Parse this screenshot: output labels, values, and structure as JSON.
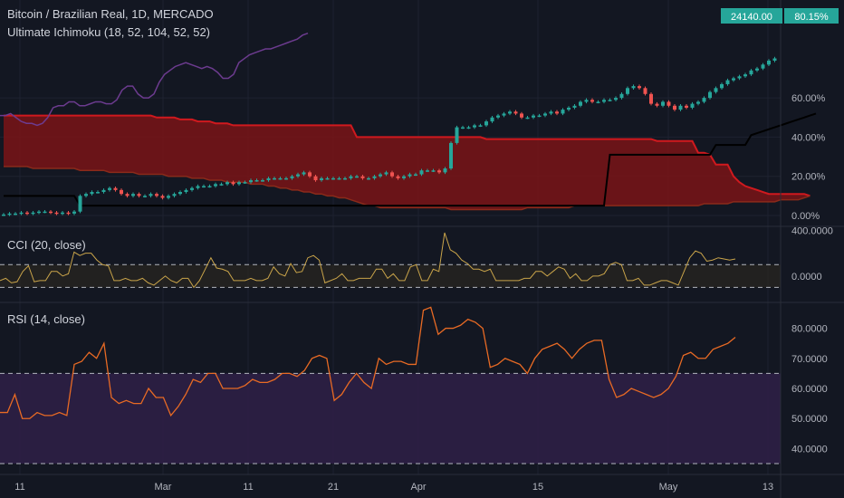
{
  "header": {
    "symbol_line": "Bitcoin / Brazilian Real, 1D, MERCADO",
    "indicator_line": "Ultimate Ichimoku (18, 52, 104, 52, 52)",
    "price_badge": "24140.00",
    "percent_badge": "80.15%"
  },
  "panes": {
    "cci_title": "CCI (20, close)",
    "rsi_title": "RSI (14, close)"
  },
  "colors": {
    "background": "#131722",
    "grid": "#1e2230",
    "cloud_fill": "#7a1416",
    "cloud_line": "#d0191e",
    "baseline": "#000000",
    "lagging": "#6c3b8f",
    "candle_up": "#26a69a",
    "candle_down": "#ef5350",
    "cci_line": "#c9a44a",
    "rsi_line": "#e86a24",
    "rsi_band": "#2d1f45",
    "badge_green": "#26a69a"
  },
  "chart_data": [
    {
      "type": "candlestick",
      "title": "Bitcoin / Brazilian Real, 1D, MERCADO",
      "y_axis_unit": "%",
      "y_ticks": [
        "0.00%",
        "20.00%",
        "40.00%",
        "60.00%"
      ],
      "ylim": [
        0,
        85
      ],
      "x_ticks": [
        "11",
        "Mar",
        "11",
        "21",
        "Apr",
        "15",
        "May",
        "13"
      ],
      "closes_percent": [
        0.5,
        1,
        1,
        1.5,
        1,
        1.5,
        2,
        2,
        1.5,
        1,
        1.5,
        1,
        2,
        10,
        11,
        12,
        12,
        13,
        14,
        13,
        11,
        10,
        11,
        10,
        10,
        11,
        10,
        9,
        10,
        11,
        12,
        13,
        14,
        15,
        15,
        15,
        16,
        16,
        17,
        16,
        17,
        17,
        18,
        18,
        18,
        19,
        19,
        19,
        19,
        20,
        21,
        22,
        20,
        18,
        19,
        19,
        19,
        19,
        19,
        20,
        20,
        19,
        19,
        20,
        21,
        22,
        20,
        19,
        20,
        21,
        21,
        23,
        23,
        23,
        22,
        24,
        37,
        45,
        45,
        45,
        46,
        46,
        48,
        50,
        51,
        52,
        53,
        52,
        50,
        50,
        51,
        51,
        52,
        53,
        52,
        54,
        55,
        56,
        58,
        59,
        58,
        58,
        59,
        59,
        60,
        62,
        65,
        66,
        65,
        62,
        57,
        56,
        58,
        56,
        54,
        56,
        55,
        57,
        58,
        60,
        63,
        65,
        67,
        69,
        70,
        71,
        72,
        74,
        75,
        77,
        79,
        80.15
      ],
      "tenkan_percent": [
        1,
        1,
        1,
        1,
        1,
        1,
        1,
        1,
        1,
        1,
        1,
        1,
        1,
        10,
        10,
        11,
        11,
        12,
        12,
        12,
        12,
        11,
        11,
        11,
        11,
        11,
        11,
        11,
        11,
        11,
        12,
        12,
        13,
        13,
        14,
        14,
        14,
        14,
        15,
        15,
        15,
        16,
        16,
        16,
        16,
        17,
        17,
        17,
        17,
        18,
        18,
        18,
        19,
        19,
        19,
        19,
        19,
        19,
        20,
        20,
        20,
        20,
        20,
        20,
        20,
        20,
        20,
        20,
        20,
        20,
        20,
        20,
        20,
        21,
        21,
        22,
        23,
        23,
        24,
        24,
        24,
        24,
        24,
        25,
        25,
        25,
        25,
        25,
        25,
        25,
        25,
        26,
        26,
        27,
        28,
        29,
        30,
        32,
        33,
        35,
        36,
        37,
        38,
        39,
        40,
        40,
        41,
        42,
        43,
        44,
        45,
        46,
        46,
        47,
        47,
        47,
        48,
        48,
        49,
        49,
        50,
        50,
        51,
        52,
        53,
        55,
        56,
        58,
        60,
        62,
        64,
        66,
        68,
        70,
        72,
        74,
        76,
        78,
        80
      ],
      "kijun_percent": [
        10,
        10,
        10,
        10,
        10,
        10,
        10,
        10,
        10,
        10,
        10,
        10,
        10,
        5,
        5,
        5,
        5,
        5,
        5,
        5,
        5,
        5,
        5,
        5,
        5,
        5,
        5,
        5,
        5,
        5,
        5,
        5,
        5,
        5,
        5,
        5,
        5,
        5,
        5,
        5,
        5,
        5,
        5,
        5,
        5,
        5,
        5,
        5,
        5,
        5,
        5,
        5,
        5,
        5,
        5,
        5,
        5,
        5,
        5,
        5,
        5,
        5,
        5,
        5,
        5,
        5,
        5,
        5,
        5,
        5,
        5,
        5,
        5,
        5,
        5,
        5,
        5,
        5,
        5,
        5,
        5,
        5,
        5,
        5,
        5,
        5,
        5,
        5,
        5,
        5,
        5,
        5,
        5,
        5,
        5,
        5,
        5,
        5,
        5,
        5,
        5,
        5,
        5,
        31,
        31,
        31,
        31,
        31,
        31,
        31,
        31,
        31,
        31,
        31,
        31,
        31,
        31,
        31,
        31,
        31,
        31,
        36,
        36,
        36,
        36,
        36,
        36,
        41,
        42,
        43,
        44,
        45,
        46,
        47,
        48,
        49,
        50,
        51,
        52
      ],
      "cloud_upper_percent": [
        51,
        51,
        51,
        51,
        51,
        51,
        51,
        51,
        51,
        51,
        51,
        51,
        51,
        51,
        51,
        51,
        51,
        51,
        51,
        51,
        51,
        51,
        51,
        51,
        51,
        51,
        50,
        50,
        50,
        50,
        49,
        49,
        49,
        48,
        48,
        48,
        47,
        47,
        47,
        46,
        46,
        46,
        46,
        46,
        46,
        46,
        46,
        46,
        46,
        46,
        46,
        46,
        46,
        46,
        46,
        46,
        46,
        46,
        46,
        46,
        40,
        40,
        40,
        40,
        40,
        40,
        40,
        40,
        40,
        40,
        40,
        40,
        40,
        40,
        40,
        40,
        40,
        40,
        40,
        40,
        40,
        40,
        39,
        39,
        39,
        39,
        39,
        39,
        39,
        39,
        39,
        39,
        39,
        39,
        39,
        39,
        39,
        39,
        39,
        39,
        39,
        39,
        39,
        39,
        39,
        39,
        39,
        39,
        39,
        39,
        39,
        38,
        38,
        38,
        38,
        38,
        38,
        38,
        32,
        32,
        31,
        26,
        26,
        26,
        20,
        17,
        15,
        14,
        13,
        12,
        11,
        11,
        11,
        11,
        11,
        11,
        11,
        10
      ],
      "cloud_lower_percent": [
        25,
        25,
        25,
        25,
        25,
        24,
        24,
        24,
        24,
        24,
        24,
        24,
        24,
        23,
        23,
        23,
        23,
        23,
        22,
        22,
        22,
        22,
        22,
        21,
        21,
        21,
        21,
        21,
        20,
        20,
        20,
        20,
        19,
        19,
        19,
        18,
        18,
        18,
        17,
        17,
        17,
        17,
        16,
        16,
        16,
        15,
        15,
        14,
        14,
        13,
        13,
        12,
        12,
        11,
        11,
        10,
        10,
        9,
        9,
        8,
        7,
        6,
        5,
        5,
        4,
        4,
        4,
        4,
        4,
        4,
        4,
        4,
        4,
        4,
        4,
        4,
        3,
        3,
        3,
        3,
        3,
        3,
        3,
        3,
        3,
        3,
        3,
        3,
        3,
        4,
        4,
        4,
        4,
        4,
        4,
        4,
        4,
        5,
        5,
        5,
        5,
        5,
        5,
        5,
        5,
        5,
        5,
        5,
        5,
        5,
        5,
        5,
        5,
        5,
        5,
        5,
        5,
        5,
        5,
        6,
        6,
        6,
        6,
        6,
        7,
        7,
        7,
        7,
        7,
        7,
        7,
        7,
        8,
        8,
        8,
        8,
        9,
        10
      ],
      "lagging_percent": [
        51,
        51,
        52,
        50,
        48,
        47,
        47,
        46,
        47,
        50,
        55,
        56,
        56,
        58,
        58,
        56,
        56,
        57,
        58,
        58,
        57,
        57,
        59,
        64,
        66,
        66,
        62,
        60,
        60,
        62,
        68,
        72,
        74,
        76,
        77,
        78,
        77,
        76,
        75,
        76,
        75,
        73,
        70,
        70,
        72,
        78,
        80,
        82,
        83,
        84,
        85,
        85,
        86,
        87,
        88,
        89,
        90,
        92,
        93
      ]
    },
    {
      "type": "line",
      "title": "CCI (20, close)",
      "y_ticks": [
        "400.0000",
        "0.0000"
      ],
      "ylim": [
        -200,
        420
      ],
      "levels": [
        100,
        -100
      ],
      "values": [
        -40,
        -20,
        -60,
        -50,
        40,
        90,
        -50,
        -40,
        -40,
        40,
        40,
        0,
        20,
        210,
        180,
        200,
        200,
        140,
        100,
        90,
        -40,
        -40,
        -20,
        -40,
        -40,
        -20,
        -60,
        -80,
        -40,
        0,
        -40,
        -60,
        -20,
        -20,
        -100,
        -40,
        60,
        160,
        70,
        60,
        40,
        -40,
        -40,
        -40,
        -20,
        -40,
        -40,
        -20,
        80,
        20,
        0,
        110,
        30,
        40,
        160,
        180,
        140,
        -60,
        -40,
        -20,
        20,
        -40,
        -40,
        -20,
        -20,
        -20,
        60,
        60,
        -20,
        20,
        -40,
        -40,
        80,
        100,
        -40,
        -40,
        60,
        40,
        380,
        230,
        200,
        140,
        110,
        60,
        60,
        40,
        60,
        -40,
        -40,
        -40,
        -40,
        -40,
        -20,
        -20,
        40,
        40,
        0,
        40,
        80,
        60,
        -20,
        20,
        -40,
        -40,
        0,
        0,
        20,
        100,
        120,
        100,
        -40,
        -40,
        -20,
        -80,
        -80,
        -60,
        -40,
        -40,
        -60,
        -80,
        40,
        160,
        220,
        200,
        130,
        140,
        160,
        150,
        140,
        150
      ]
    },
    {
      "type": "line",
      "title": "RSI (14, close)",
      "y_ticks": [
        "80.0000",
        "70.0000",
        "60.0000",
        "50.0000",
        "40.0000"
      ],
      "ylim": [
        32,
        88
      ],
      "levels": [
        65,
        35
      ],
      "values": [
        52,
        52,
        58,
        50,
        50,
        52,
        51,
        51,
        52,
        51,
        68,
        69,
        72,
        70,
        75,
        57,
        55,
        56,
        55,
        55,
        60,
        57,
        57,
        51,
        54,
        58,
        63,
        62,
        65,
        65,
        60,
        60,
        60,
        61,
        63,
        62,
        62,
        63,
        65,
        65,
        64,
        66,
        70,
        71,
        70,
        56,
        58,
        62,
        65,
        62,
        60,
        70,
        68,
        69,
        69,
        68,
        68,
        86,
        87,
        78,
        80,
        80,
        81,
        83,
        82,
        80,
        67,
        68,
        70,
        69,
        68,
        65,
        70,
        73,
        74,
        75,
        73,
        70,
        73,
        75,
        76,
        76,
        63,
        57,
        58,
        60,
        59,
        58,
        57,
        58,
        60,
        64,
        71,
        72,
        70,
        70,
        73,
        74,
        75,
        77
      ]
    }
  ]
}
